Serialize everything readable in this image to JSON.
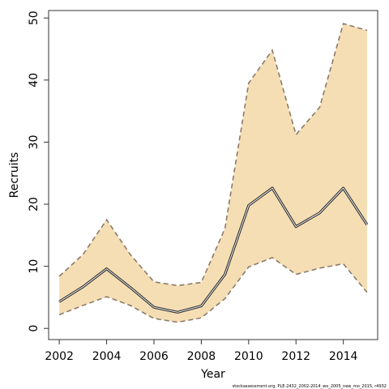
{
  "chart_data": {
    "type": "area",
    "xlabel": "Year",
    "ylabel": "Recruits",
    "xlim": [
      2001.55,
      2015.45
    ],
    "ylim": [
      -1.8,
      51.2
    ],
    "x_ticks": [
      2002,
      2004,
      2006,
      2008,
      2010,
      2012,
      2014
    ],
    "y_ticks": [
      0,
      10,
      20,
      30,
      40,
      50
    ],
    "x": [
      2002,
      2003,
      2004,
      2005,
      2006,
      2007,
      2008,
      2009,
      2010,
      2011,
      2012,
      2013,
      2014,
      2015
    ],
    "series": [
      {
        "role": "estimate",
        "values": [
          4.3,
          6.7,
          9.6,
          6.6,
          3.4,
          2.6,
          3.6,
          8.7,
          19.8,
          22.6,
          16.4,
          18.6,
          22.6,
          16.7
        ]
      },
      {
        "role": "lower",
        "values": [
          2.2,
          3.7,
          5.1,
          3.7,
          1.6,
          1.0,
          1.7,
          4.8,
          9.9,
          11.4,
          8.7,
          9.7,
          10.4,
          5.8
        ]
      },
      {
        "role": "upper",
        "values": [
          8.4,
          11.9,
          17.5,
          11.9,
          7.5,
          6.9,
          7.4,
          16.1,
          39.5,
          44.8,
          31.2,
          35.6,
          49.1,
          48.0
        ]
      }
    ],
    "band_color": "#f5deb3",
    "estimate_color": "#333333",
    "bound_color": "#8c7b6b",
    "grid": false,
    "footnote": "stockassessment.org, PLE-2432_2002-2014_wo_2005_new_mo_2015, r4932"
  }
}
